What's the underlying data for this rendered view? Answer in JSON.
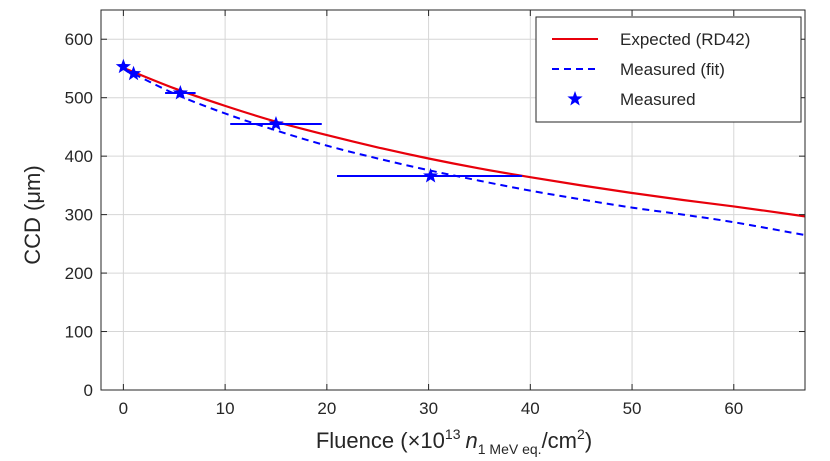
{
  "chart_data": {
    "type": "line",
    "title": "",
    "xlabel": {
      "main": "Fluence (",
      "times": "×10",
      "exp": "13",
      "n": "n",
      "sub": "1 MeV eq.",
      "slash_unit": "/cm",
      "unit_exp": "2",
      "close": ")"
    },
    "ylabel": "CCD (μm)",
    "xlim": [
      -2.2,
      67
    ],
    "ylim": [
      0,
      650
    ],
    "xticks": [
      0,
      10,
      20,
      30,
      40,
      50,
      60
    ],
    "yticks": [
      0,
      100,
      200,
      300,
      400,
      500,
      600
    ],
    "grid": true,
    "legend_position": "top-right",
    "series": [
      {
        "name": "Expected (RD42)",
        "style": "solid-line",
        "color": "#e8000b",
        "x": [
          0,
          5,
          10,
          15,
          20,
          25,
          30,
          35,
          40,
          45,
          50,
          55,
          60,
          67
        ],
        "y": [
          551,
          516,
          486,
          459,
          436,
          415,
          396,
          379,
          364,
          350,
          337,
          325,
          314,
          297
        ]
      },
      {
        "name": "Measured (fit)",
        "style": "dashed-line",
        "color": "#0000ff",
        "x": [
          0,
          5,
          10,
          15,
          20,
          25,
          30,
          35,
          40,
          45,
          50,
          55,
          60,
          67
        ],
        "y": [
          550,
          507,
          473,
          444,
          418,
          396,
          376,
          358,
          341,
          326,
          312,
          300,
          287,
          265
        ]
      },
      {
        "name": "Measured",
        "style": "star-markers",
        "color": "#0000ff",
        "points": [
          {
            "x": 0,
            "y": 553,
            "xerr_low": 0,
            "xerr_high": 0
          },
          {
            "x": 1,
            "y": 541,
            "xerr_low": 0,
            "xerr_high": 0
          },
          {
            "x": 5.6,
            "y": 508,
            "xerr_low": 1.5,
            "xerr_high": 1.5
          },
          {
            "x": 15,
            "y": 455,
            "xerr_low": 4.5,
            "xerr_high": 4.5
          },
          {
            "x": 30.2,
            "y": 366,
            "xerr_low": 9.2,
            "xerr_high": 9.0
          }
        ]
      }
    ]
  }
}
